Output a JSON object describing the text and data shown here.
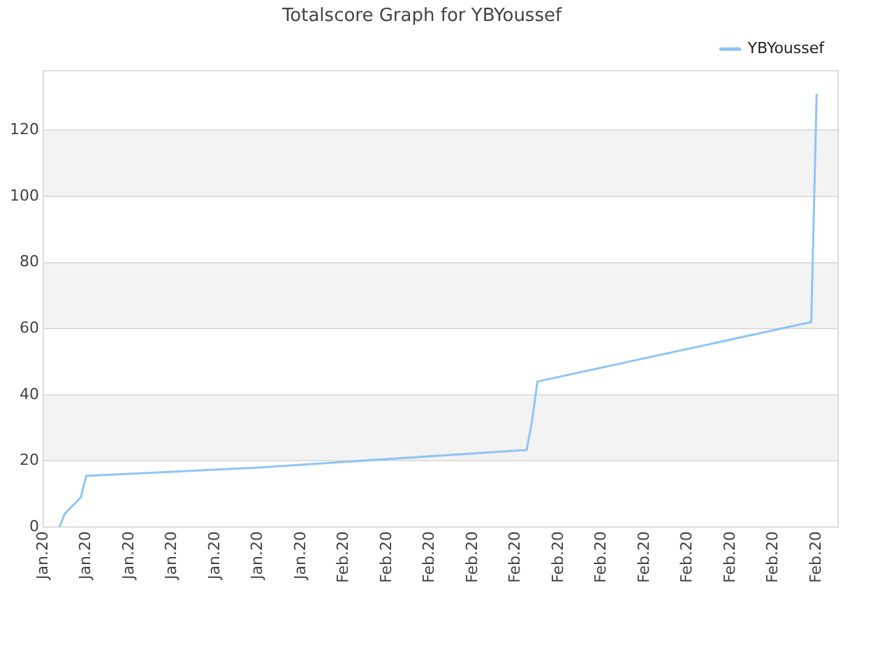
{
  "chart_data": {
    "type": "line",
    "title": "Totalscore Graph for YBYoussef",
    "categories": [
      "Jan.20",
      null,
      null,
      null,
      null,
      null,
      null,
      null,
      "Jan.20",
      null,
      null,
      null,
      null,
      null,
      null,
      null,
      "Jan.20",
      null,
      null,
      null,
      null,
      null,
      null,
      null,
      "Jan.20",
      null,
      null,
      null,
      null,
      null,
      null,
      null,
      "Jan.20",
      null,
      null,
      null,
      null,
      null,
      null,
      null,
      "Jan.20",
      null,
      null,
      null,
      null,
      null,
      null,
      null,
      "Jan.20",
      null,
      null,
      null,
      null,
      null,
      null,
      null,
      "Feb.20",
      null,
      null,
      null,
      null,
      null,
      null,
      null,
      "Feb.20",
      null,
      null,
      null,
      null,
      null,
      null,
      null,
      "Feb.20",
      null,
      null,
      null,
      null,
      null,
      null,
      null,
      "Feb.20",
      null,
      null,
      null,
      null,
      null,
      null,
      null,
      "Feb.20",
      null,
      null,
      null,
      null,
      null,
      null,
      null,
      "Feb.20",
      null,
      null,
      null,
      null,
      null,
      null,
      null,
      "Feb.20",
      null,
      null,
      null,
      null,
      null,
      null,
      null,
      "Feb.20",
      null,
      null,
      null,
      null,
      null,
      null,
      null,
      "Feb.20",
      null,
      null,
      null,
      null,
      null,
      null,
      null,
      "Feb.20",
      null,
      null,
      null,
      null,
      null,
      null,
      null,
      "Feb.20",
      null,
      null,
      null,
      null,
      null,
      null,
      null,
      "Feb.20",
      null,
      null,
      null,
      null
    ],
    "series": [
      {
        "name": "YBYoussef",
        "color": "#90c4f4",
        "values": [
          null,
          null,
          null,
          0,
          4,
          null,
          null,
          9,
          15.5,
          null,
          null,
          15.7,
          null,
          null,
          null,
          null,
          null,
          null,
          null,
          null,
          null,
          null,
          null,
          null,
          null,
          null,
          null,
          null,
          null,
          null,
          null,
          null,
          null,
          null,
          null,
          null,
          null,
          null,
          null,
          null,
          18,
          null,
          null,
          null,
          null,
          null,
          null,
          null,
          null,
          null,
          null,
          null,
          null,
          null,
          null,
          null,
          null,
          null,
          null,
          null,
          null,
          null,
          null,
          null,
          null,
          null,
          null,
          null,
          null,
          null,
          null,
          null,
          null,
          null,
          null,
          null,
          null,
          null,
          null,
          null,
          null,
          null,
          null,
          null,
          null,
          null,
          null,
          null,
          null,
          null,
          23.3,
          32,
          44,
          null,
          null,
          null,
          null,
          null,
          null,
          null,
          null,
          null,
          null,
          null,
          null,
          null,
          null,
          null,
          null,
          null,
          null,
          null,
          null,
          null,
          null,
          null,
          null,
          null,
          null,
          null,
          null,
          null,
          null,
          null,
          null,
          null,
          null,
          null,
          null,
          null,
          null,
          null,
          null,
          null,
          null,
          null,
          null,
          null,
          null,
          null,
          null,
          null,
          null,
          62,
          131,
          null,
          null,
          null,
          null
        ]
      }
    ],
    "ylim": [
      0,
      138
    ],
    "yticks": [
      0,
      20,
      40,
      60,
      80,
      100,
      120
    ],
    "grid": "y",
    "legend": "top right",
    "marker": "none",
    "line_style": "solid"
  }
}
